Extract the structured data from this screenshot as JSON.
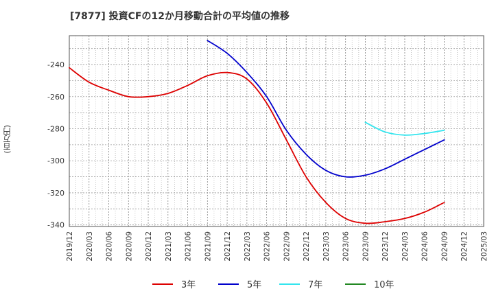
{
  "chart_data": {
    "type": "line",
    "title": "[7877]  投資CFの12か月移動合計の平均値の推移",
    "ylabel": "(百万円)",
    "xlabel": "",
    "x_ticks": [
      "2019/12",
      "2020/03",
      "2020/06",
      "2020/09",
      "2020/12",
      "2021/03",
      "2021/06",
      "2021/09",
      "2021/12",
      "2022/03",
      "2022/06",
      "2022/09",
      "2022/12",
      "2023/03",
      "2023/06",
      "2023/09",
      "2023/12",
      "2024/03",
      "2024/06",
      "2024/09",
      "2024/12",
      "2025/03"
    ],
    "y_ticks": [
      -340,
      -320,
      -300,
      -280,
      -260,
      -240
    ],
    "ylim": [
      -341,
      -222
    ],
    "grid": true,
    "legend_position": "bottom",
    "series": [
      {
        "name": "3年",
        "color": "#dd0000",
        "points": [
          [
            "2019/12",
            -242
          ],
          [
            "2020/03",
            -251
          ],
          [
            "2020/06",
            -256
          ],
          [
            "2020/09",
            -260
          ],
          [
            "2020/12",
            -260
          ],
          [
            "2021/03",
            -258
          ],
          [
            "2021/06",
            -253
          ],
          [
            "2021/09",
            -247
          ],
          [
            "2021/12",
            -245
          ],
          [
            "2022/03",
            -249
          ],
          [
            "2022/06",
            -264
          ],
          [
            "2022/09",
            -287
          ],
          [
            "2022/12",
            -310
          ],
          [
            "2023/03",
            -326
          ],
          [
            "2023/06",
            -336
          ],
          [
            "2023/09",
            -339
          ],
          [
            "2023/12",
            -338
          ],
          [
            "2024/03",
            -336
          ],
          [
            "2024/06",
            -332
          ],
          [
            "2024/09",
            -326
          ]
        ]
      },
      {
        "name": "5年",
        "color": "#0000cc",
        "points": [
          [
            "2021/09",
            -225
          ],
          [
            "2021/12",
            -233
          ],
          [
            "2022/03",
            -245
          ],
          [
            "2022/06",
            -260
          ],
          [
            "2022/09",
            -281
          ],
          [
            "2022/12",
            -296
          ],
          [
            "2023/03",
            -306
          ],
          [
            "2023/06",
            -310
          ],
          [
            "2023/09",
            -309
          ],
          [
            "2023/12",
            -305
          ],
          [
            "2024/03",
            -299
          ],
          [
            "2024/06",
            -293
          ],
          [
            "2024/09",
            -287
          ]
        ]
      },
      {
        "name": "7年",
        "color": "#33e5ee",
        "points": [
          [
            "2023/09",
            -276
          ],
          [
            "2023/12",
            -282
          ],
          [
            "2024/03",
            -284
          ],
          [
            "2024/06",
            -283
          ],
          [
            "2024/09",
            -281
          ]
        ]
      },
      {
        "name": "10年",
        "color": "#228822",
        "points": []
      }
    ]
  }
}
